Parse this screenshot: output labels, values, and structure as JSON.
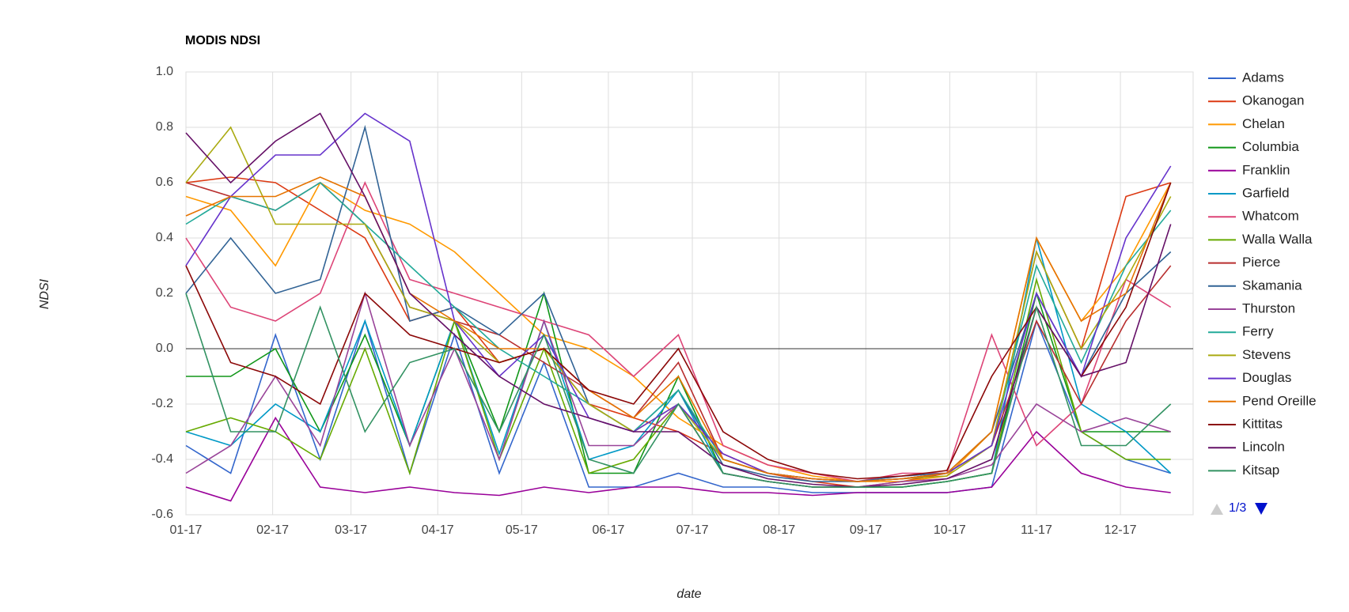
{
  "chart_data": {
    "type": "line",
    "title": "MODIS NDSI",
    "x_label": "date",
    "y_label": "NDSI",
    "x": [
      0,
      16,
      32,
      48,
      64,
      80,
      96,
      112,
      128,
      144,
      160,
      176,
      192,
      208,
      224,
      240,
      256,
      272,
      288,
      304,
      320,
      336,
      352
    ],
    "xlim": [
      0,
      360
    ],
    "xticks": [
      {
        "value": 0,
        "label": "01-17"
      },
      {
        "value": 31,
        "label": "02-17"
      },
      {
        "value": 59,
        "label": "03-17"
      },
      {
        "value": 90,
        "label": "04-17"
      },
      {
        "value": 120,
        "label": "05-17"
      },
      {
        "value": 151,
        "label": "06-17"
      },
      {
        "value": 181,
        "label": "07-17"
      },
      {
        "value": 212,
        "label": "08-17"
      },
      {
        "value": 243,
        "label": "09-17"
      },
      {
        "value": 273,
        "label": "10-17"
      },
      {
        "value": 304,
        "label": "11-17"
      },
      {
        "value": 334,
        "label": "12-17"
      }
    ],
    "ylim": [
      -0.6,
      1.0
    ],
    "yticks": [
      -0.6,
      -0.4,
      -0.2,
      {
        "value": 0,
        "label": "0.0"
      },
      0.2,
      0.4,
      0.6,
      0.8,
      {
        "value": 1,
        "label": "1.0"
      }
    ],
    "grid": true,
    "legend_position": "right",
    "legend_page": "1/3",
    "series": [
      {
        "name": "Adams",
        "color": "#3366cc",
        "values": [
          -0.35,
          -0.45,
          0.05,
          -0.4,
          0.1,
          -0.45,
          0.05,
          -0.45,
          -0.05,
          -0.5,
          -0.5,
          -0.45,
          -0.5,
          -0.5,
          -0.52,
          -0.52,
          -0.52,
          -0.52,
          -0.5,
          0.1,
          -0.3,
          -0.4,
          -0.45
        ]
      },
      {
        "name": "Okanogan",
        "color": "#dc3912",
        "values": [
          0.6,
          0.62,
          0.6,
          0.5,
          0.4,
          0.1,
          0.15,
          -0.05,
          0.0,
          -0.2,
          -0.25,
          -0.3,
          -0.38,
          -0.45,
          -0.48,
          -0.5,
          -0.48,
          -0.45,
          -0.35,
          0.35,
          0.0,
          0.55,
          0.6
        ]
      },
      {
        "name": "Chelan",
        "color": "#ff9900",
        "values": [
          0.55,
          0.5,
          0.3,
          0.6,
          0.5,
          0.45,
          0.35,
          0.2,
          0.05,
          0.0,
          -0.1,
          -0.25,
          -0.35,
          -0.42,
          -0.46,
          -0.48,
          -0.48,
          -0.46,
          -0.3,
          0.4,
          0.1,
          0.3,
          0.6
        ]
      },
      {
        "name": "Columbia",
        "color": "#109618",
        "values": [
          -0.1,
          -0.1,
          0.0,
          -0.3,
          0.05,
          -0.35,
          0.1,
          -0.3,
          0.2,
          -0.45,
          -0.45,
          -0.1,
          -0.45,
          -0.48,
          -0.5,
          -0.5,
          -0.5,
          -0.48,
          -0.45,
          0.2,
          -0.3,
          -0.3,
          -0.3
        ]
      },
      {
        "name": "Franklin",
        "color": "#990099",
        "values": [
          -0.5,
          -0.55,
          -0.25,
          -0.5,
          -0.52,
          -0.5,
          -0.52,
          -0.53,
          -0.5,
          -0.52,
          -0.5,
          -0.5,
          -0.52,
          -0.52,
          -0.53,
          -0.52,
          -0.52,
          -0.52,
          -0.5,
          -0.3,
          -0.45,
          -0.5,
          -0.52
        ]
      },
      {
        "name": "Garfield",
        "color": "#0099c6",
        "values": [
          -0.3,
          -0.35,
          -0.2,
          -0.3,
          0.1,
          -0.35,
          0.1,
          -0.38,
          0.1,
          -0.4,
          -0.35,
          -0.15,
          -0.45,
          -0.48,
          -0.5,
          -0.5,
          -0.5,
          -0.48,
          -0.45,
          0.4,
          -0.2,
          -0.3,
          -0.45
        ]
      },
      {
        "name": "Whatcom",
        "color": "#dd4477",
        "values": [
          0.4,
          0.15,
          0.1,
          0.2,
          0.6,
          0.25,
          0.2,
          0.15,
          0.1,
          0.05,
          -0.1,
          0.05,
          -0.35,
          -0.42,
          -0.45,
          -0.48,
          -0.45,
          -0.45,
          0.05,
          -0.35,
          -0.2,
          0.25,
          0.15
        ]
      },
      {
        "name": "Walla Walla",
        "color": "#66aa00",
        "values": [
          -0.3,
          -0.25,
          -0.3,
          -0.4,
          0.0,
          -0.45,
          0.1,
          -0.4,
          0.0,
          -0.45,
          -0.4,
          -0.2,
          -0.45,
          -0.48,
          -0.5,
          -0.5,
          -0.5,
          -0.48,
          -0.45,
          0.25,
          -0.3,
          -0.4,
          -0.4
        ]
      },
      {
        "name": "Pierce",
        "color": "#b82e2e",
        "values": [
          0.6,
          0.55,
          0.5,
          0.6,
          0.45,
          0.15,
          0.1,
          0.05,
          -0.05,
          -0.15,
          -0.25,
          -0.05,
          -0.4,
          -0.45,
          -0.47,
          -0.48,
          -0.47,
          -0.45,
          -0.35,
          0.1,
          -0.2,
          0.1,
          0.3
        ]
      },
      {
        "name": "Skamania",
        "color": "#316395",
        "values": [
          0.2,
          0.4,
          0.2,
          0.25,
          0.8,
          0.1,
          0.15,
          0.05,
          0.2,
          -0.2,
          -0.3,
          -0.15,
          -0.42,
          -0.46,
          -0.48,
          -0.48,
          -0.46,
          -0.45,
          -0.3,
          0.2,
          -0.1,
          0.2,
          0.35
        ]
      },
      {
        "name": "Thurston",
        "color": "#994499",
        "values": [
          -0.45,
          -0.35,
          -0.1,
          -0.35,
          0.2,
          -0.35,
          0.0,
          -0.4,
          0.1,
          -0.35,
          -0.35,
          -0.2,
          -0.45,
          -0.48,
          -0.5,
          -0.5,
          -0.48,
          -0.47,
          -0.42,
          -0.2,
          -0.3,
          -0.25,
          -0.3
        ]
      },
      {
        "name": "Ferry",
        "color": "#22aa99",
        "values": [
          0.45,
          0.55,
          0.5,
          0.6,
          0.45,
          0.3,
          0.15,
          0.0,
          -0.1,
          -0.2,
          -0.3,
          -0.15,
          -0.4,
          -0.45,
          -0.47,
          -0.48,
          -0.47,
          -0.45,
          -0.35,
          0.3,
          -0.05,
          0.3,
          0.5
        ]
      },
      {
        "name": "Stevens",
        "color": "#aaaa11",
        "values": [
          0.6,
          0.8,
          0.45,
          0.45,
          0.45,
          0.15,
          0.1,
          -0.05,
          0.0,
          -0.2,
          -0.3,
          -0.2,
          -0.4,
          -0.45,
          -0.47,
          -0.48,
          -0.47,
          -0.46,
          -0.35,
          0.35,
          0.0,
          0.25,
          0.55
        ]
      },
      {
        "name": "Douglas",
        "color": "#6633cc",
        "values": [
          0.3,
          0.55,
          0.7,
          0.7,
          0.85,
          0.75,
          0.1,
          -0.1,
          0.05,
          -0.25,
          -0.3,
          -0.2,
          -0.38,
          -0.45,
          -0.47,
          -0.48,
          -0.47,
          -0.45,
          -0.35,
          0.2,
          -0.1,
          0.4,
          0.66
        ]
      },
      {
        "name": "Pend Oreille",
        "color": "#e67300",
        "values": [
          0.48,
          0.55,
          0.55,
          0.62,
          0.55,
          0.2,
          0.1,
          0.0,
          0.0,
          -0.15,
          -0.25,
          -0.1,
          -0.4,
          -0.45,
          -0.47,
          -0.48,
          -0.47,
          -0.45,
          -0.3,
          0.4,
          0.1,
          0.2,
          0.6
        ]
      },
      {
        "name": "Kittitas",
        "color": "#8b0707",
        "values": [
          0.3,
          -0.05,
          -0.1,
          -0.2,
          0.2,
          0.05,
          0.0,
          -0.05,
          0.0,
          -0.15,
          -0.2,
          0.0,
          -0.3,
          -0.4,
          -0.45,
          -0.47,
          -0.46,
          -0.44,
          -0.1,
          0.15,
          -0.1,
          0.15,
          0.6
        ]
      },
      {
        "name": "Lincoln",
        "color": "#651067",
        "values": [
          0.78,
          0.6,
          0.75,
          0.85,
          0.55,
          0.2,
          0.05,
          -0.1,
          -0.2,
          -0.25,
          -0.3,
          -0.3,
          -0.42,
          -0.47,
          -0.49,
          -0.5,
          -0.49,
          -0.47,
          -0.4,
          0.15,
          -0.1,
          -0.05,
          0.45
        ]
      },
      {
        "name": "Kitsap",
        "color": "#329262",
        "values": [
          0.2,
          -0.3,
          -0.3,
          0.15,
          -0.3,
          -0.05,
          0.0,
          -0.3,
          0.05,
          -0.4,
          -0.45,
          -0.2,
          -0.45,
          -0.48,
          -0.5,
          -0.5,
          -0.5,
          -0.48,
          -0.45,
          0.15,
          -0.35,
          -0.35,
          -0.2
        ]
      }
    ]
  }
}
